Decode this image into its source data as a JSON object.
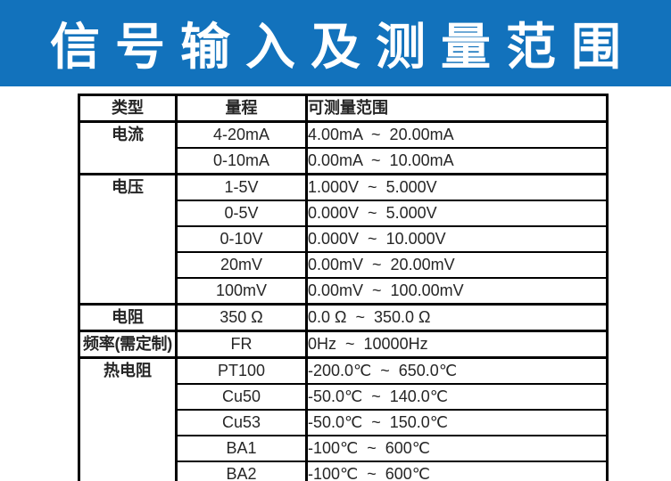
{
  "banner": {
    "title": "信号输入及测量范围",
    "bg_color": "#1272bc",
    "text_color": "#ffffff"
  },
  "table": {
    "headers": {
      "type": "类型",
      "range": "量程",
      "measurable": "可测量范围"
    },
    "rows": [
      {
        "type": "电流",
        "range": "4-20mA",
        "measurable": "4.00mA  ~  20.00mA"
      },
      {
        "range": "0-10mA",
        "measurable": "0.00mA  ~  10.00mA"
      },
      {
        "type": "电压",
        "range": "1-5V",
        "measurable": "1.000V  ~  5.000V"
      },
      {
        "range": "0-5V",
        "measurable": "0.000V  ~  5.000V"
      },
      {
        "range": "0-10V",
        "measurable": "0.000V  ~  10.000V"
      },
      {
        "range": "20mV",
        "measurable": "0.00mV  ~  20.00mV"
      },
      {
        "range": "100mV",
        "measurable": "0.00mV  ~  100.00mV"
      },
      {
        "type": "电阻",
        "range": "350 Ω",
        "measurable": "0.0 Ω  ~  350.0 Ω"
      },
      {
        "type": "频率(需定制)",
        "range": "FR",
        "measurable": "0Hz  ~  10000Hz"
      },
      {
        "type": "热电阻",
        "range": "PT100",
        "measurable": "-200.0℃  ~  650.0℃"
      },
      {
        "range": "Cu50",
        "measurable": "-50.0℃  ~  140.0℃"
      },
      {
        "range": "Cu53",
        "measurable": "-50.0℃  ~  150.0℃"
      },
      {
        "range": "BA1",
        "measurable": "-100℃  ~  600℃"
      },
      {
        "range": "BA2",
        "measurable": "-100℃  ~  600℃"
      }
    ]
  }
}
